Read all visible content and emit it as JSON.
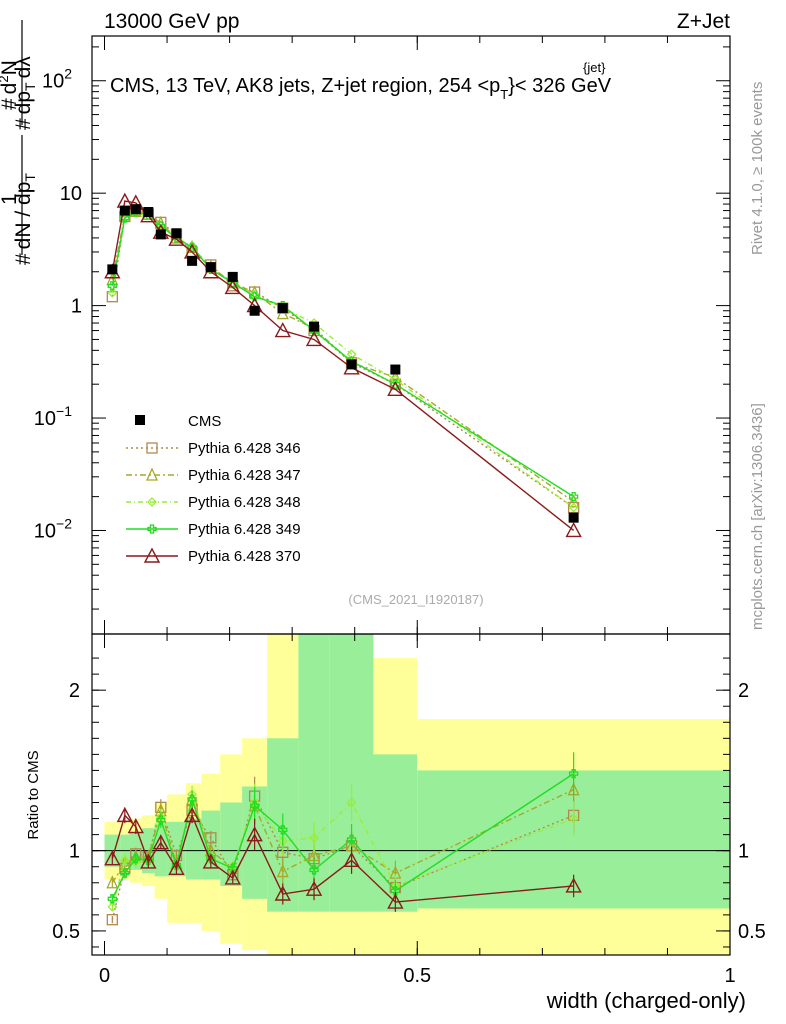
{
  "chart_data": {
    "type": "line",
    "header_left": "13000 GeV pp",
    "header_right": "Z+Jet",
    "title": "CMS, 13 TeV, AK8 jets, Z+jet region, 254 <",
    "title_pt": "p",
    "title_sub": "T",
    "title_sup": "{jet}",
    "title_end": "}< 326 GeV",
    "ylabel_main": "1 / dN/dp_T d²N/dp_T dλ",
    "ylabel_ratio": "Ratio to CMS",
    "xlabel": "width (charged-only)",
    "side_label_top": "Rivet 4.1.0, ≥ 100k events",
    "side_label_bottom": "mcplots.cern.ch [arXiv:1306.3436]",
    "watermark": "(CMS_2021_I1920187)",
    "xlim": [
      -0.02,
      1.0
    ],
    "ylim_main": [
      0.0012,
      250
    ],
    "ylim_ratio": [
      0.35,
      2.35
    ],
    "x_ticks": [
      {
        "v": 0,
        "label": "0"
      },
      {
        "v": 0.5,
        "label": "0.5"
      },
      {
        "v": 1,
        "label": "1"
      }
    ],
    "y_ticks_main": [
      {
        "v": 0.01,
        "label": "10",
        "exp": "−2"
      },
      {
        "v": 0.1,
        "label": "10",
        "exp": "−1"
      },
      {
        "v": 1,
        "label": "1",
        "exp": ""
      },
      {
        "v": 10,
        "label": "10",
        "exp": ""
      },
      {
        "v": 100,
        "label": "10",
        "exp": "2"
      }
    ],
    "y_ticks_ratio": [
      {
        "v": 0.5,
        "label": "0.5"
      },
      {
        "v": 1,
        "label": "1"
      },
      {
        "v": 2,
        "label": "2"
      }
    ],
    "bins": [
      {
        "lo": 0.0,
        "hi": 0.025,
        "x": 0.0125
      },
      {
        "lo": 0.025,
        "hi": 0.04,
        "x": 0.0325
      },
      {
        "lo": 0.04,
        "hi": 0.06,
        "x": 0.05
      },
      {
        "lo": 0.06,
        "hi": 0.08,
        "x": 0.07
      },
      {
        "lo": 0.08,
        "hi": 0.1,
        "x": 0.09
      },
      {
        "lo": 0.1,
        "hi": 0.13,
        "x": 0.115
      },
      {
        "lo": 0.13,
        "hi": 0.155,
        "x": 0.14
      },
      {
        "lo": 0.155,
        "hi": 0.185,
        "x": 0.17
      },
      {
        "lo": 0.185,
        "hi": 0.22,
        "x": 0.205
      },
      {
        "lo": 0.22,
        "hi": 0.26,
        "x": 0.24
      },
      {
        "lo": 0.26,
        "hi": 0.31,
        "x": 0.285
      },
      {
        "lo": 0.31,
        "hi": 0.36,
        "x": 0.335
      },
      {
        "lo": 0.36,
        "hi": 0.43,
        "x": 0.395
      },
      {
        "lo": 0.43,
        "hi": 0.5,
        "x": 0.465
      },
      {
        "lo": 0.5,
        "hi": 1.0,
        "x": 0.75
      }
    ],
    "cms": {
      "name": "CMS",
      "values": [
        2.1,
        7.0,
        7.2,
        6.8,
        4.3,
        4.4,
        2.5,
        2.2,
        1.8,
        0.9,
        0.95,
        0.65,
        0.3,
        0.27,
        0.013
      ],
      "band_inner_lo": [
        0.9,
        0.9,
        0.88,
        0.86,
        0.84,
        0.84,
        0.82,
        0.82,
        0.78,
        0.7,
        0.62,
        0.62,
        0.62,
        0.62,
        0.64
      ],
      "band_inner_hi": [
        1.1,
        1.1,
        1.12,
        1.14,
        1.17,
        1.18,
        1.2,
        1.25,
        1.3,
        1.4,
        1.7,
        2.35,
        2.35,
        1.6,
        1.5
      ],
      "band_outer_lo": [
        0.82,
        0.82,
        0.8,
        0.78,
        0.7,
        0.55,
        0.55,
        0.5,
        0.42,
        0.38,
        0.3,
        0.3,
        0.3,
        0.3,
        0.3
      ],
      "band_outer_hi": [
        1.18,
        1.18,
        1.2,
        1.22,
        1.3,
        1.35,
        1.42,
        1.48,
        1.6,
        1.7,
        2.35,
        2.35,
        2.35,
        2.2,
        1.82
      ]
    },
    "series": [
      {
        "name": "Pythia 6.428 346",
        "color": "#B08850",
        "dash": "2,3",
        "marker": "square",
        "values": [
          1.2,
          6.2,
          7.1,
          6.5,
          5.5,
          4.3,
          3.0,
          2.3,
          1.5,
          1.32,
          0.95,
          0.6,
          0.31,
          0.2,
          0.016
        ],
        "ratio": [
          0.57,
          0.89,
          0.98,
          0.96,
          1.27,
          0.97,
          1.25,
          1.08,
          0.85,
          1.34,
          0.99,
          0.95,
          1.03,
          0.77,
          1.22
        ]
      },
      {
        "name": "Pythia 6.428 347",
        "color": "#A8A828",
        "dash": "6,3,2,3",
        "marker": "triangle",
        "values": [
          1.7,
          6.4,
          6.9,
          6.5,
          5.4,
          4.0,
          3.3,
          2.2,
          1.6,
          1.3,
          0.85,
          0.63,
          0.31,
          0.23,
          0.018
        ],
        "ratio": [
          0.8,
          0.92,
          0.96,
          0.96,
          1.25,
          0.92,
          1.32,
          1.0,
          0.89,
          1.28,
          0.87,
          0.97,
          1.03,
          0.86,
          1.38
        ]
      },
      {
        "name": "Pythia 6.428 348",
        "color": "#99EE33",
        "dash": "5,3,1,3",
        "marker": "diamond",
        "values": [
          1.3,
          6.6,
          6.7,
          6.3,
          5.2,
          4.0,
          3.4,
          2.1,
          1.6,
          1.25,
          0.95,
          0.7,
          0.37,
          0.22,
          0.016
        ],
        "ratio": [
          0.65,
          0.94,
          0.93,
          0.93,
          1.21,
          0.9,
          1.35,
          0.95,
          0.9,
          1.3,
          1.06,
          1.08,
          1.3,
          0.78,
          1.2
        ]
      },
      {
        "name": "Pythia 6.428 349",
        "color": "#22DD22",
        "dash": "",
        "marker": "cross",
        "values": [
          1.5,
          6.0,
          6.8,
          6.4,
          5.1,
          4.0,
          3.3,
          2.1,
          1.6,
          1.2,
          1.0,
          0.6,
          0.32,
          0.2,
          0.02
        ],
        "ratio": [
          0.7,
          0.86,
          0.95,
          0.94,
          1.19,
          0.91,
          1.32,
          0.95,
          0.89,
          1.28,
          1.13,
          0.88,
          1.07,
          0.75,
          1.48
        ]
      },
      {
        "name": "Pythia 6.428 370",
        "color": "#8B1A1A",
        "dash": "",
        "marker": "triangle-open",
        "values": [
          2.0,
          8.5,
          8.2,
          6.3,
          4.5,
          3.9,
          3.0,
          2.0,
          1.45,
          1.0,
          0.6,
          0.5,
          0.28,
          0.18,
          0.01
        ],
        "ratio": [
          0.95,
          1.22,
          1.15,
          0.93,
          1.05,
          0.89,
          1.22,
          0.93,
          0.83,
          1.1,
          0.73,
          0.76,
          0.94,
          0.68,
          0.78
        ]
      }
    ]
  }
}
